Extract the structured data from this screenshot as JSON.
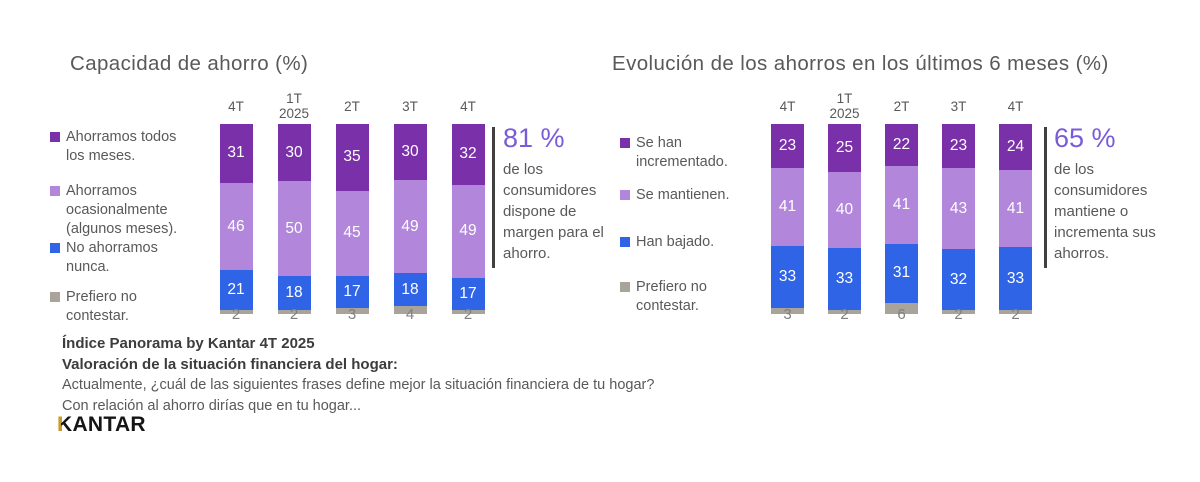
{
  "colors": {
    "purple_dark": "#7A30A8",
    "purple_light": "#B286DB",
    "blue": "#2F64E7",
    "gray": "#A8A49A",
    "title_gray": "#595959",
    "callout_purple": "#7A5BD8",
    "footer_dark": "#3C3C3C",
    "bracket": "#404040",
    "value_label_gray": "#7F7F7F",
    "logo_gold": "#C99A2C",
    "logo_black": "#151515"
  },
  "chart_data": [
    {
      "type": "bar",
      "stacked": true,
      "value_unit": "%",
      "title": "Capacidad de ahorro (%)",
      "legend_position": "left",
      "categories": [
        [
          "4T"
        ],
        [
          "1T",
          "2025"
        ],
        [
          "2T"
        ],
        [
          "3T"
        ],
        [
          "4T"
        ]
      ],
      "series": [
        {
          "name": "Ahorramos todos los meses.",
          "color_key": "purple_dark",
          "values": [
            31,
            30,
            35,
            30,
            32
          ]
        },
        {
          "name": "Ahorramos ocasionalmente (algunos meses).",
          "color_key": "purple_light",
          "values": [
            46,
            50,
            45,
            49,
            49
          ]
        },
        {
          "name": "No ahorramos nunca.",
          "color_key": "blue",
          "values": [
            21,
            18,
            17,
            18,
            17
          ]
        },
        {
          "name": "Prefiero no contestar.",
          "color_key": "gray",
          "values": [
            2,
            2,
            3,
            4,
            2
          ]
        }
      ],
      "callout": {
        "value": "81 %",
        "text": "de los consumidores dispone de margen para el ahorro."
      }
    },
    {
      "type": "bar",
      "stacked": true,
      "value_unit": "%",
      "title": "Evolución de los ahorros en los últimos 6 meses (%)",
      "legend_position": "left",
      "categories": [
        [
          "4T"
        ],
        [
          "1T",
          "2025"
        ],
        [
          "2T"
        ],
        [
          "3T"
        ],
        [
          "4T"
        ]
      ],
      "series": [
        {
          "name": "Se han incrementado.",
          "color_key": "purple_dark",
          "values": [
            23,
            25,
            22,
            23,
            24
          ]
        },
        {
          "name": "Se mantienen.",
          "color_key": "purple_light",
          "values": [
            41,
            40,
            41,
            43,
            41
          ]
        },
        {
          "name": "Han bajado.",
          "color_key": "blue",
          "values": [
            33,
            33,
            31,
            32,
            33
          ]
        },
        {
          "name": "Prefiero no contestar.",
          "color_key": "gray",
          "values": [
            3,
            2,
            6,
            2,
            2
          ]
        }
      ],
      "callout": {
        "value": "65 %",
        "text": "de los consumidores mantiene o incrementa sus ahorros."
      }
    }
  ],
  "footer": {
    "line1": "Índice Panorama by Kantar 4T 2025",
    "line2": "Valoración de la situación financiera del hogar:",
    "line3": "Actualmente, ¿cuál de las siguientes frases define mejor la situación financiera de tu hogar?",
    "line4": "Con relación al ahorro dirías que en tu hogar..."
  },
  "logo": {
    "text": "KANTAR"
  }
}
